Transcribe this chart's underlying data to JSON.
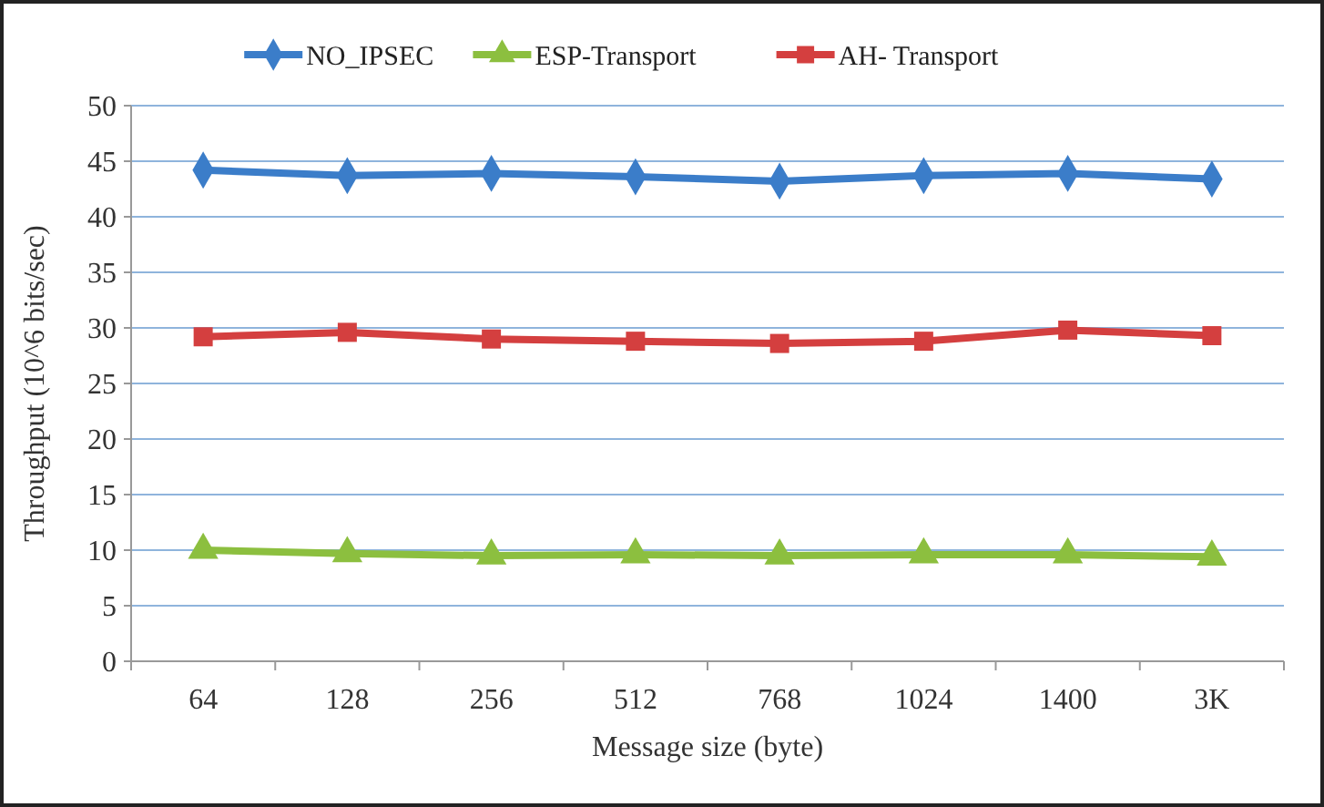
{
  "chart_data": {
    "type": "line",
    "xlabel": "Message size (byte)",
    "ylabel": "Throughput (10^6 bits/sec)",
    "categories": [
      "64",
      "128",
      "256",
      "512",
      "768",
      "1024",
      "1400",
      "3K"
    ],
    "series": [
      {
        "name": "NO_IPSEC",
        "color": "#3b7dc9",
        "marker": "diamond",
        "values": [
          44.2,
          43.7,
          43.9,
          43.6,
          43.2,
          43.7,
          43.9,
          43.4
        ]
      },
      {
        "name": "ESP-Transport",
        "color": "#8cbf3f",
        "marker": "triangle",
        "values": [
          10.0,
          9.7,
          9.5,
          9.6,
          9.5,
          9.6,
          9.6,
          9.4
        ]
      },
      {
        "name": "AH- Transport",
        "color": "#d43f3f",
        "marker": "square",
        "values": [
          29.2,
          29.6,
          29.0,
          28.8,
          28.6,
          28.8,
          29.8,
          29.3
        ]
      }
    ],
    "ylim": [
      0,
      50
    ],
    "yticks": [
      0,
      5,
      10,
      15,
      20,
      25,
      30,
      35,
      40,
      45,
      50
    ],
    "grid": "y",
    "legend": "top"
  }
}
